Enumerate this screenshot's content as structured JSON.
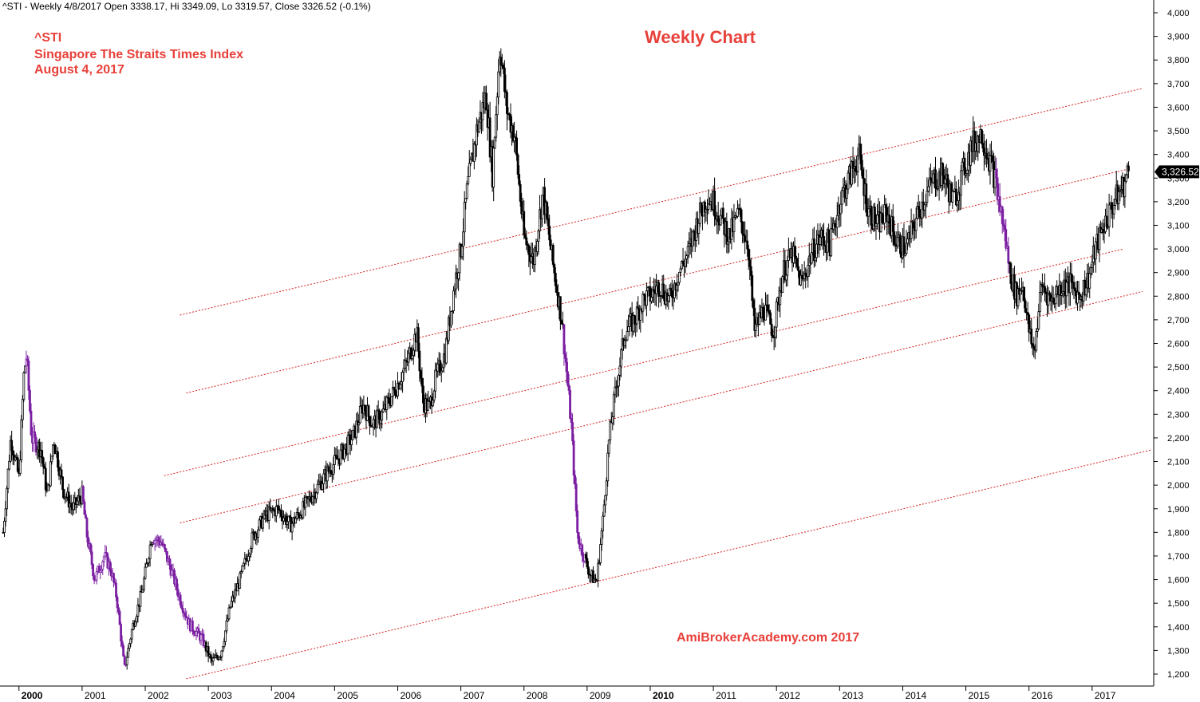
{
  "header": {
    "info": "^STI - Weekly 4/8/2017 Open 3338.17, Hi 3349.09, Lo 3319.57, Close 3326.52 (-0.1%)"
  },
  "annotations": {
    "symbol": "^STI",
    "name": "Singapore The Straits Times Index",
    "date": "August 4, 2017",
    "chart_title": "Weekly Chart",
    "watermark": "AmiBrokerAcademy.com  2017"
  },
  "colors": {
    "candle": "#000000",
    "down_highlight": "#7b1fa2",
    "channel": "#d62020",
    "label_red": "#e8403a",
    "price_marker": "#000000"
  },
  "chart_data": {
    "type": "candlestick",
    "title": "Weekly Chart",
    "series_name": "^STI",
    "x_range": [
      1999.75,
      2017.9
    ],
    "ylim": [
      1200,
      4000
    ],
    "y_ticks": [
      1200,
      1300,
      1400,
      1500,
      1600,
      1700,
      1800,
      1900,
      2000,
      2100,
      2200,
      2300,
      2400,
      2500,
      2600,
      2700,
      2800,
      2900,
      3000,
      3100,
      3200,
      3300,
      3400,
      3500,
      3600,
      3700,
      3800,
      3900,
      4000
    ],
    "y_tick_labels": [
      "1,200",
      "1,300",
      "1,400",
      "1,500",
      "1,600",
      "1,700",
      "1,800",
      "1,900",
      "2,000",
      "2,100",
      "2,200",
      "2,300",
      "2,400",
      "2,500",
      "2,600",
      "2,700",
      "2,800",
      "2,900",
      "3,000",
      "3,100",
      "3,200",
      "3,300",
      "3,400",
      "3,500",
      "3,600",
      "3,700",
      "3,800",
      "3,900",
      "4,000"
    ],
    "x_ticks": [
      {
        "label": "2000",
        "x": 2000.0,
        "bold": true
      },
      {
        "label": "2001",
        "x": 2001.0,
        "bold": false
      },
      {
        "label": "2002",
        "x": 2002.0,
        "bold": false
      },
      {
        "label": "2003",
        "x": 2003.0,
        "bold": false
      },
      {
        "label": "2004",
        "x": 2004.0,
        "bold": false
      },
      {
        "label": "2005",
        "x": 2005.0,
        "bold": false
      },
      {
        "label": "2006",
        "x": 2006.0,
        "bold": false
      },
      {
        "label": "2007",
        "x": 2007.0,
        "bold": false
      },
      {
        "label": "2008",
        "x": 2008.0,
        "bold": false
      },
      {
        "label": "2009",
        "x": 2009.0,
        "bold": false
      },
      {
        "label": "2010",
        "x": 2010.0,
        "bold": true
      },
      {
        "label": "2011",
        "x": 2011.0,
        "bold": false
      },
      {
        "label": "2012",
        "x": 2012.0,
        "bold": false
      },
      {
        "label": "2013",
        "x": 2013.0,
        "bold": false
      },
      {
        "label": "2014",
        "x": 2014.0,
        "bold": false
      },
      {
        "label": "2015",
        "x": 2015.0,
        "bold": false
      },
      {
        "label": "2016",
        "x": 2016.0,
        "bold": false
      },
      {
        "label": "2017",
        "x": 2017.0,
        "bold": false
      }
    ],
    "price_anchors": [
      [
        1999.75,
        1800
      ],
      [
        1999.87,
        2200
      ],
      [
        2000.0,
        2030
      ],
      [
        2000.08,
        2480
      ],
      [
        2000.12,
        2550
      ],
      [
        2000.2,
        2200
      ],
      [
        2000.35,
        2150
      ],
      [
        2000.45,
        1950
      ],
      [
        2000.55,
        2200
      ],
      [
        2000.7,
        1980
      ],
      [
        2000.85,
        1900
      ],
      [
        2001.0,
        1960
      ],
      [
        2001.08,
        1780
      ],
      [
        2001.2,
        1600
      ],
      [
        2001.35,
        1700
      ],
      [
        2001.45,
        1650
      ],
      [
        2001.55,
        1520
      ],
      [
        2001.67,
        1220
      ],
      [
        2001.8,
        1400
      ],
      [
        2001.95,
        1550
      ],
      [
        2002.1,
        1780
      ],
      [
        2002.25,
        1760
      ],
      [
        2002.4,
        1650
      ],
      [
        2002.55,
        1520
      ],
      [
        2002.7,
        1410
      ],
      [
        2002.9,
        1350
      ],
      [
        2003.05,
        1250
      ],
      [
        2003.2,
        1290
      ],
      [
        2003.35,
        1490
      ],
      [
        2003.5,
        1600
      ],
      [
        2003.7,
        1780
      ],
      [
        2003.9,
        1870
      ],
      [
        2004.1,
        1900
      ],
      [
        2004.3,
        1830
      ],
      [
        2004.5,
        1900
      ],
      [
        2004.7,
        1980
      ],
      [
        2004.9,
        2060
      ],
      [
        2005.1,
        2130
      ],
      [
        2005.3,
        2210
      ],
      [
        2005.45,
        2340
      ],
      [
        2005.6,
        2260
      ],
      [
        2005.75,
        2300
      ],
      [
        2005.95,
        2400
      ],
      [
        2006.15,
        2520
      ],
      [
        2006.3,
        2650
      ],
      [
        2006.4,
        2350
      ],
      [
        2006.5,
        2330
      ],
      [
        2006.6,
        2450
      ],
      [
        2006.75,
        2560
      ],
      [
        2006.9,
        2850
      ],
      [
        2007.0,
        3000
      ],
      [
        2007.1,
        3250
      ],
      [
        2007.25,
        3500
      ],
      [
        2007.4,
        3650
      ],
      [
        2007.5,
        3320
      ],
      [
        2007.62,
        3870
      ],
      [
        2007.72,
        3600
      ],
      [
        2007.85,
        3480
      ],
      [
        2008.0,
        3050
      ],
      [
        2008.15,
        2950
      ],
      [
        2008.3,
        3240
      ],
      [
        2008.45,
        2950
      ],
      [
        2008.6,
        2700
      ],
      [
        2008.75,
        2250
      ],
      [
        2008.85,
        1780
      ],
      [
        2008.95,
        1700
      ],
      [
        2009.05,
        1620
      ],
      [
        2009.15,
        1590
      ],
      [
        2009.25,
        1850
      ],
      [
        2009.35,
        2200
      ],
      [
        2009.45,
        2400
      ],
      [
        2009.6,
        2650
      ],
      [
        2009.75,
        2700
      ],
      [
        2009.9,
        2790
      ],
      [
        2010.0,
        2800
      ],
      [
        2010.15,
        2850
      ],
      [
        2010.3,
        2780
      ],
      [
        2010.45,
        2900
      ],
      [
        2010.6,
        2980
      ],
      [
        2010.75,
        3120
      ],
      [
        2010.9,
        3220
      ],
      [
        2011.0,
        3200
      ],
      [
        2011.1,
        3140
      ],
      [
        2011.25,
        3050
      ],
      [
        2011.4,
        3150
      ],
      [
        2011.55,
        3020
      ],
      [
        2011.65,
        2650
      ],
      [
        2011.8,
        2750
      ],
      [
        2011.95,
        2650
      ],
      [
        2012.1,
        2900
      ],
      [
        2012.25,
        2980
      ],
      [
        2012.4,
        2850
      ],
      [
        2012.55,
        2980
      ],
      [
        2012.7,
        3050
      ],
      [
        2012.85,
        3020
      ],
      [
        2013.0,
        3200
      ],
      [
        2013.15,
        3300
      ],
      [
        2013.3,
        3400
      ],
      [
        2013.45,
        3170
      ],
      [
        2013.6,
        3100
      ],
      [
        2013.75,
        3150
      ],
      [
        2013.9,
        3030
      ],
      [
        2014.05,
        3000
      ],
      [
        2014.2,
        3120
      ],
      [
        2014.35,
        3220
      ],
      [
        2014.5,
        3300
      ],
      [
        2014.65,
        3310
      ],
      [
        2014.8,
        3200
      ],
      [
        2014.95,
        3320
      ],
      [
        2015.1,
        3440
      ],
      [
        2015.25,
        3490
      ],
      [
        2015.35,
        3400
      ],
      [
        2015.45,
        3310
      ],
      [
        2015.6,
        3090
      ],
      [
        2015.7,
        2900
      ],
      [
        2015.8,
        2800
      ],
      [
        2015.9,
        2850
      ],
      [
        2016.0,
        2650
      ],
      [
        2016.08,
        2560
      ],
      [
        2016.2,
        2850
      ],
      [
        2016.35,
        2780
      ],
      [
        2016.5,
        2840
      ],
      [
        2016.65,
        2850
      ],
      [
        2016.8,
        2800
      ],
      [
        2016.95,
        2880
      ],
      [
        2017.05,
        3000
      ],
      [
        2017.2,
        3110
      ],
      [
        2017.35,
        3200
      ],
      [
        2017.5,
        3270
      ],
      [
        2017.58,
        3330
      ]
    ],
    "down_spans": [
      [
        2000.1,
        2000.28
      ],
      [
        2001.0,
        2001.7
      ],
      [
        2002.12,
        2002.95
      ],
      [
        2008.62,
        2008.98
      ],
      [
        2015.48,
        2015.68
      ]
    ],
    "channel_lines": [
      {
        "x1": 2002.55,
        "y1": 2720,
        "x2": 2017.8,
        "y2": 3680
      },
      {
        "x1": 2002.65,
        "y1": 2390,
        "x2": 2017.6,
        "y2": 3340
      },
      {
        "x1": 2002.3,
        "y1": 2040,
        "x2": 2017.5,
        "y2": 3000
      },
      {
        "x1": 2002.55,
        "y1": 1840,
        "x2": 2017.8,
        "y2": 2820
      },
      {
        "x1": 2002.65,
        "y1": 1180,
        "x2": 2017.95,
        "y2": 2150
      }
    ],
    "last_close_label": "3,326.52",
    "last_close": 3326.52,
    "grid": false,
    "legend": "none"
  }
}
